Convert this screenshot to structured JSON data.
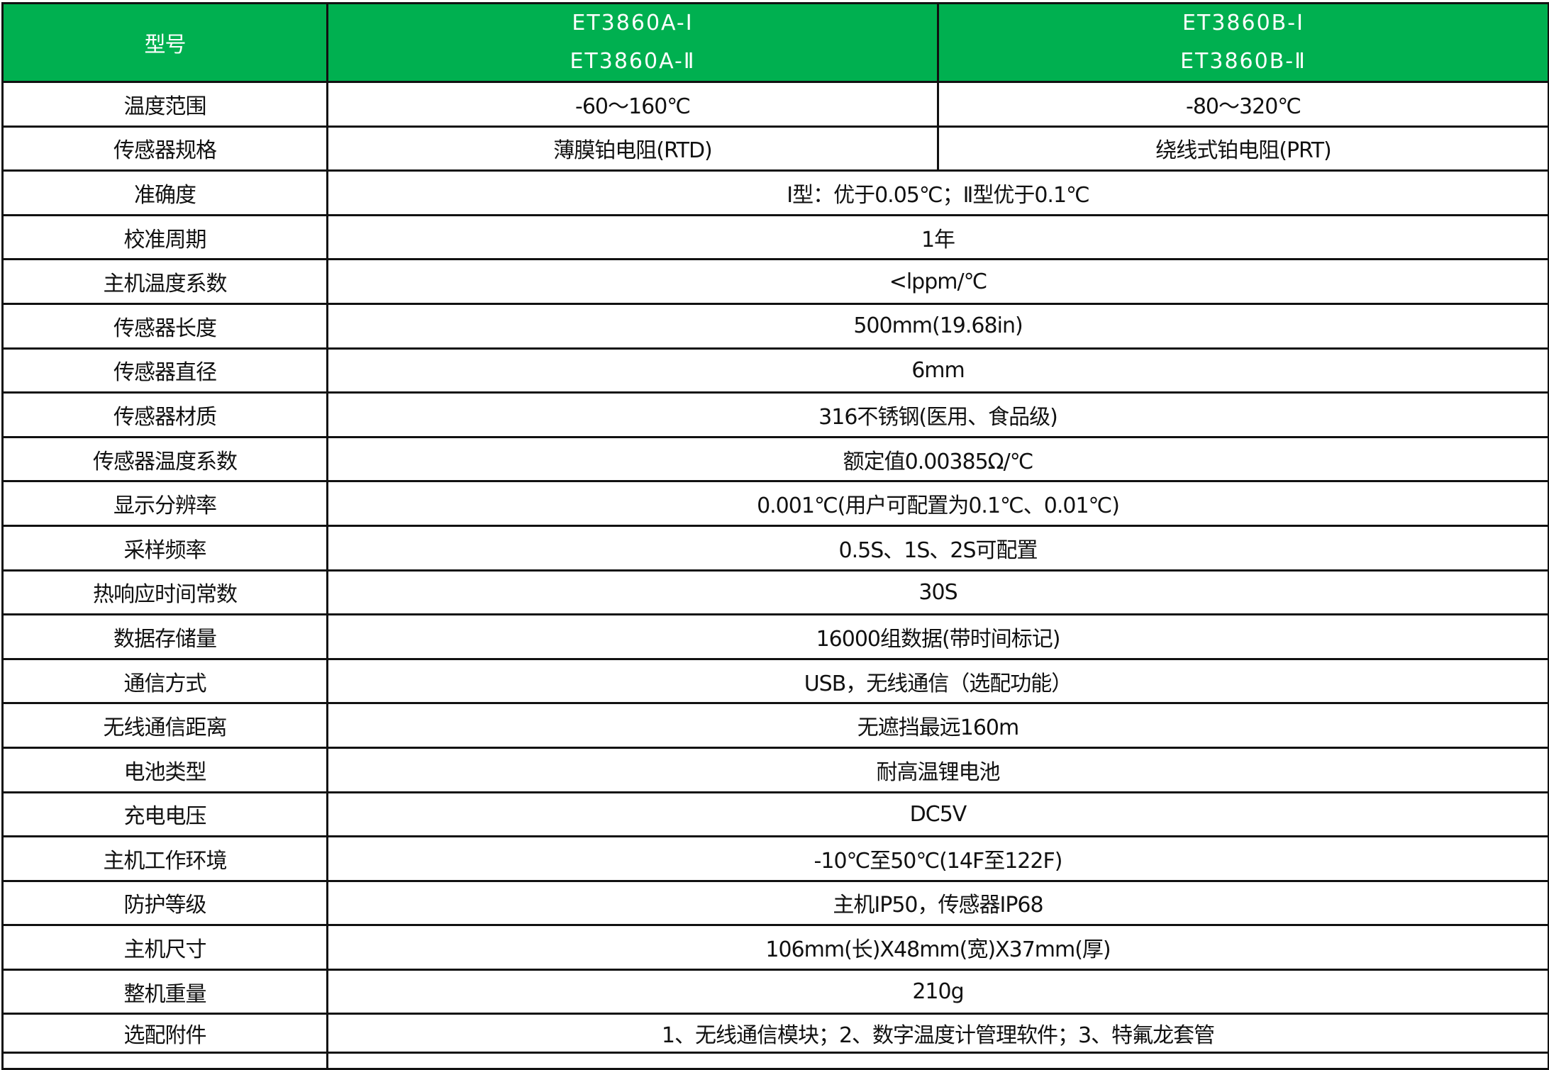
{
  "header": {
    "label": "型号",
    "model_a": [
      "ET3860A-Ⅰ",
      "ET3860A-Ⅱ"
    ],
    "model_b": [
      "ET3860B-Ⅰ",
      "ET3860B-Ⅱ"
    ]
  },
  "colors": {
    "header_bg": "#00B050",
    "header_text": "#FFFFFF",
    "border": "#111111"
  },
  "rows": [
    {
      "label": "温度范围",
      "a": "-60～160℃",
      "b": "-80～320℃"
    },
    {
      "label": "传感器规格",
      "a": "薄膜铂电阻(RTD)",
      "b": "绕线式铂电阻(PRT)"
    },
    {
      "label": "准确度",
      "value": "Ⅰ型：优于0.05℃；Ⅱ型优于0.1℃"
    },
    {
      "label": "校准周期",
      "value": "1年"
    },
    {
      "label": "主机温度系数",
      "value": "<lppm/℃"
    },
    {
      "label": "传感器长度",
      "value": "500mm(19.68in)"
    },
    {
      "label": "传感器直径",
      "value": "6mm"
    },
    {
      "label": "传感器材质",
      "value": "316不锈钢(医用、食品级)"
    },
    {
      "label": "传感器温度系数",
      "value": "额定值0.00385Ω/℃"
    },
    {
      "label": "显示分辨率",
      "value": "0.001℃(用户可配置为0.1℃、0.01℃)"
    },
    {
      "label": "采样频率",
      "value": "0.5S、1S、2S可配置"
    },
    {
      "label": "热响应时间常数",
      "value": "30S"
    },
    {
      "label": "数据存储量",
      "value": "16000组数据(带时间标记)"
    },
    {
      "label": "通信方式",
      "value": "USB，无线通信（选配功能）"
    },
    {
      "label": "无线通信距离",
      "value": "无遮挡最远160m"
    },
    {
      "label": "电池类型",
      "value": "耐高温锂电池"
    },
    {
      "label": "充电电压",
      "value": "DC5V"
    },
    {
      "label": "主机工作环境",
      "value": "-10℃至50℃(14F至122F)"
    },
    {
      "label": "防护等级",
      "value": "主机IP50，传感器IP68"
    },
    {
      "label": "主机尺寸",
      "value": "106mm(长)X48mm(宽)X37mm(厚)"
    },
    {
      "label": "整机重量",
      "value": "210g"
    },
    {
      "label": "选配附件",
      "value": "1、无线通信模块；2、数字温度计管理软件；3、特氟龙套管"
    }
  ]
}
